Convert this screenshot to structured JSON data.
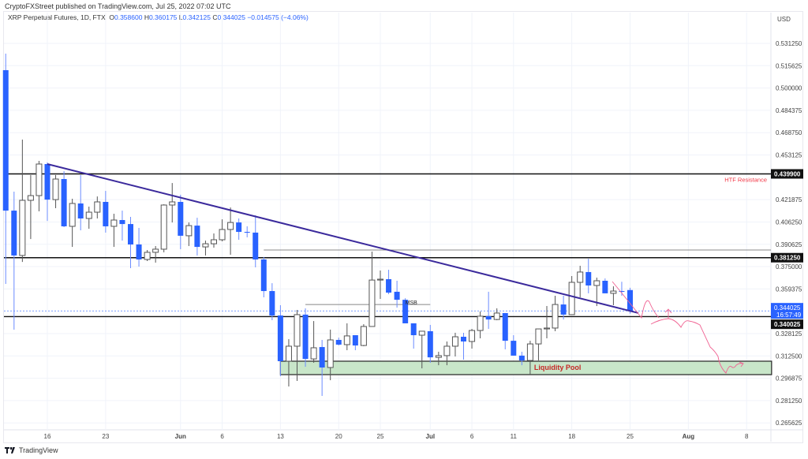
{
  "header": {
    "published": "CryptoFXStreet published on TradingView.com, Jul 25, 2022 07:02 UTC",
    "symbol": "XRP Perpetual Futures, 1D, FTX",
    "o_label": "O",
    "o": "0.358600",
    "h_label": "H",
    "h": "0.360175",
    "l_label": "L",
    "l": "0.342125",
    "c_label": "C",
    "c": "0.344025",
    "change": "−0.014575 (−4.06%)"
  },
  "footer": {
    "brand": "TradingView",
    "logo_icon": "tradingview-logo-icon"
  },
  "colors": {
    "up": "#ffffff",
    "up_border": "#555555",
    "down": "#2962ff",
    "trendline": "#3b2a9c",
    "projection": "#f06292",
    "pool_fill": "#c8e6c9",
    "resistance_text": "#f23645"
  },
  "chart_data": {
    "type": "candlestick",
    "currency": "USD",
    "ylim": [
      0.2578,
      0.5469
    ],
    "xlim": [
      "2022-05-11",
      "2022-08-11"
    ],
    "grid": true,
    "y_ticks": [
      "0.531250",
      "0.515625",
      "0.500000",
      "0.484375",
      "0.468750",
      "0.453125",
      "0.421875",
      "0.406250",
      "0.390625",
      "0.375000",
      "0.359375",
      "0.328125",
      "0.312500",
      "0.296875",
      "0.281250",
      "0.265625"
    ],
    "x_ticks": [
      {
        "date": "2022-05-16",
        "label": "16"
      },
      {
        "date": "2022-05-23",
        "label": "23"
      },
      {
        "date": "2022-06-01",
        "label": "Jun"
      },
      {
        "date": "2022-06-06",
        "label": "6"
      },
      {
        "date": "2022-06-13",
        "label": "13"
      },
      {
        "date": "2022-06-20",
        "label": "20"
      },
      {
        "date": "2022-06-25",
        "label": "25"
      },
      {
        "date": "2022-07-01",
        "label": "Jul"
      },
      {
        "date": "2022-07-06",
        "label": "6"
      },
      {
        "date": "2022-07-11",
        "label": "11"
      },
      {
        "date": "2022-07-18",
        "label": "18"
      },
      {
        "date": "2022-07-25",
        "label": "25"
      },
      {
        "date": "2022-08-01",
        "label": "Aug"
      },
      {
        "date": "2022-08-08",
        "label": "8"
      }
    ],
    "candles_columns": [
      "date",
      "open",
      "high",
      "low",
      "close"
    ],
    "candles": [
      [
        "2022-05-11",
        0.5125,
        0.5241,
        0.3629,
        0.4142
      ],
      [
        "2022-05-12",
        0.4142,
        0.4275,
        0.3309,
        0.3828
      ],
      [
        "2022-05-13",
        0.3828,
        0.4639,
        0.3783,
        0.4214
      ],
      [
        "2022-05-14",
        0.4214,
        0.4391,
        0.3943,
        0.4247
      ],
      [
        "2022-05-15",
        0.4247,
        0.449,
        0.4137,
        0.4468
      ],
      [
        "2022-05-16",
        0.4468,
        0.448,
        0.407,
        0.4219
      ],
      [
        "2022-05-17",
        0.4219,
        0.4391,
        0.4159,
        0.4363
      ],
      [
        "2022-05-18",
        0.4363,
        0.4418,
        0.4026,
        0.4032
      ],
      [
        "2022-05-19",
        0.4032,
        0.4225,
        0.3888,
        0.4192
      ],
      [
        "2022-05-20",
        0.4192,
        0.4391,
        0.4004,
        0.4087
      ],
      [
        "2022-05-21",
        0.4087,
        0.417,
        0.4015,
        0.4131
      ],
      [
        "2022-05-22",
        0.4131,
        0.4241,
        0.4087,
        0.4203
      ],
      [
        "2022-05-23",
        0.4203,
        0.428,
        0.3988,
        0.4032
      ],
      [
        "2022-05-24",
        0.4032,
        0.412,
        0.3888,
        0.4076
      ],
      [
        "2022-05-25",
        0.4076,
        0.4142,
        0.3932,
        0.4048
      ],
      [
        "2022-05-26",
        0.4048,
        0.4098,
        0.3739,
        0.3905
      ],
      [
        "2022-05-27",
        0.3905,
        0.4021,
        0.375,
        0.38
      ],
      [
        "2022-05-28",
        0.38,
        0.3866,
        0.3789,
        0.385
      ],
      [
        "2022-05-29",
        0.385,
        0.3894,
        0.3778,
        0.3872
      ],
      [
        "2022-05-30",
        0.3872,
        0.4186,
        0.385,
        0.4181
      ],
      [
        "2022-05-31",
        0.4181,
        0.4335,
        0.4059,
        0.4203
      ],
      [
        "2022-06-01",
        0.4203,
        0.4253,
        0.3872,
        0.3966
      ],
      [
        "2022-06-02",
        0.3966,
        0.4059,
        0.3894,
        0.4037
      ],
      [
        "2022-06-03",
        0.4037,
        0.4092,
        0.3828,
        0.3888
      ],
      [
        "2022-06-04",
        0.3888,
        0.3932,
        0.3828,
        0.391
      ],
      [
        "2022-06-05",
        0.391,
        0.3982,
        0.3883,
        0.3938
      ],
      [
        "2022-06-06",
        0.3938,
        0.4081,
        0.3927,
        0.401
      ],
      [
        "2022-06-07",
        0.401,
        0.4164,
        0.3833,
        0.4059
      ],
      [
        "2022-06-08",
        0.4059,
        0.4087,
        0.3938,
        0.3993
      ],
      [
        "2022-06-09",
        0.3993,
        0.4032,
        0.3955,
        0.3988
      ],
      [
        "2022-06-10",
        0.3988,
        0.4109,
        0.3745,
        0.38
      ],
      [
        "2022-06-11",
        0.38,
        0.3817,
        0.3535,
        0.3579
      ],
      [
        "2022-06-12",
        0.3579,
        0.3634,
        0.3375,
        0.3408
      ],
      [
        "2022-06-13",
        0.3408,
        0.348,
        0.2983,
        0.3088
      ],
      [
        "2022-06-14",
        0.3088,
        0.3242,
        0.2911,
        0.3193
      ],
      [
        "2022-06-15",
        0.3193,
        0.3447,
        0.295,
        0.3414
      ],
      [
        "2022-06-16",
        0.3414,
        0.3458,
        0.3049,
        0.3104
      ],
      [
        "2022-06-17",
        0.3104,
        0.3369,
        0.3077,
        0.3182
      ],
      [
        "2022-06-18",
        0.3187,
        0.3237,
        0.2845,
        0.3044
      ],
      [
        "2022-06-19",
        0.3044,
        0.3309,
        0.2955,
        0.3237
      ],
      [
        "2022-06-20",
        0.3237,
        0.3253,
        0.3198,
        0.3204
      ],
      [
        "2022-06-21",
        0.3204,
        0.3353,
        0.3165,
        0.3265
      ],
      [
        "2022-06-22",
        0.327,
        0.327,
        0.3165,
        0.3198
      ],
      [
        "2022-06-23",
        0.3198,
        0.3347,
        0.3193,
        0.3331
      ],
      [
        "2022-06-24",
        0.3331,
        0.3855,
        0.3331,
        0.3656
      ],
      [
        "2022-06-25",
        0.3656,
        0.3723,
        0.3524,
        0.3662
      ],
      [
        "2022-06-26",
        0.3662,
        0.3728,
        0.3557,
        0.3568
      ],
      [
        "2022-06-27",
        0.3574,
        0.3651,
        0.3463,
        0.3518
      ],
      [
        "2022-06-28",
        0.3518,
        0.3529,
        0.3353,
        0.3353
      ],
      [
        "2022-06-29",
        0.3353,
        0.3353,
        0.3176,
        0.327
      ],
      [
        "2022-06-30",
        0.327,
        0.3298,
        0.3038,
        0.3298
      ],
      [
        "2022-07-01",
        0.3298,
        0.3342,
        0.3077,
        0.3115
      ],
      [
        "2022-07-02",
        0.3115,
        0.3154,
        0.306,
        0.3127
      ],
      [
        "2022-07-03",
        0.3127,
        0.3226,
        0.306,
        0.3193
      ],
      [
        "2022-07-04",
        0.3193,
        0.3287,
        0.3121,
        0.3259
      ],
      [
        "2022-07-05",
        0.3259,
        0.3287,
        0.3099,
        0.3226
      ],
      [
        "2022-07-06",
        0.3226,
        0.3314,
        0.3176,
        0.3303
      ],
      [
        "2022-07-07",
        0.3303,
        0.3436,
        0.3248,
        0.3403
      ],
      [
        "2022-07-08",
        0.3403,
        0.3574,
        0.3314,
        0.338
      ],
      [
        "2022-07-09",
        0.338,
        0.3458,
        0.3375,
        0.3425
      ],
      [
        "2022-07-10",
        0.3425,
        0.3425,
        0.3171,
        0.3231
      ],
      [
        "2022-07-11",
        0.3231,
        0.327,
        0.3127,
        0.3127
      ],
      [
        "2022-07-12",
        0.3127,
        0.3154,
        0.306,
        0.3093
      ],
      [
        "2022-07-13",
        0.3093,
        0.3231,
        0.2994,
        0.3209
      ],
      [
        "2022-07-14",
        0.3209,
        0.3314,
        0.3093,
        0.3314
      ],
      [
        "2022-07-15",
        0.3314,
        0.3474,
        0.3248,
        0.332
      ],
      [
        "2022-07-16",
        0.332,
        0.3546,
        0.3298,
        0.3485
      ],
      [
        "2022-07-17",
        0.3485,
        0.3546,
        0.338,
        0.3414
      ],
      [
        "2022-07-18",
        0.3414,
        0.3684,
        0.3414,
        0.364
      ],
      [
        "2022-07-19",
        0.364,
        0.3756,
        0.3535,
        0.3712
      ],
      [
        "2022-07-20",
        0.3712,
        0.3805,
        0.3563,
        0.3618
      ],
      [
        "2022-07-21",
        0.3618,
        0.3673,
        0.3474,
        0.3651
      ],
      [
        "2022-07-22",
        0.3651,
        0.3667,
        0.3563,
        0.3563
      ],
      [
        "2022-07-23",
        0.3563,
        0.3612,
        0.348,
        0.3579
      ],
      [
        "2022-07-24",
        0.3579,
        0.3644,
        0.3546,
        0.3574
      ],
      [
        "2022-07-25",
        0.3586,
        0.360175,
        0.342125,
        0.344025
      ]
    ],
    "horizontal_levels": [
      {
        "price": 0.4399,
        "label": "0.439900"
      },
      {
        "price": 0.38125,
        "label": "0.381250"
      },
      {
        "price": 0.340025,
        "label": "0.340025"
      }
    ],
    "current_price": {
      "price": 0.344025,
      "label": "0.344025",
      "countdown": "16:57:49"
    },
    "annotations": [
      {
        "type": "text",
        "text": "HTF Resistance",
        "price": 0.4365,
        "date": "2022-08-06"
      },
      {
        "type": "text",
        "text": "MSB",
        "price": 0.3485,
        "date": "2022-06-28"
      },
      {
        "type": "segment",
        "from": {
          "date": "2022-06-16",
          "price": 0.3485
        },
        "to": {
          "date": "2022-07-01",
          "price": 0.3485
        }
      },
      {
        "type": "segment",
        "from": {
          "date": "2022-06-11",
          "price": 0.3866
        },
        "to": {
          "date": "2022-08-12",
          "price": 0.3866
        }
      },
      {
        "type": "trendline",
        "from": {
          "date": "2022-05-16",
          "price": 0.4468
        },
        "to": {
          "date": "2022-07-26",
          "price": 0.3425
        }
      },
      {
        "type": "zone",
        "text": "Liquidity Pool",
        "from": "2022-06-13",
        "to": "2022-08-11",
        "top": 0.3088,
        "bottom": 0.2994
      }
    ]
  }
}
